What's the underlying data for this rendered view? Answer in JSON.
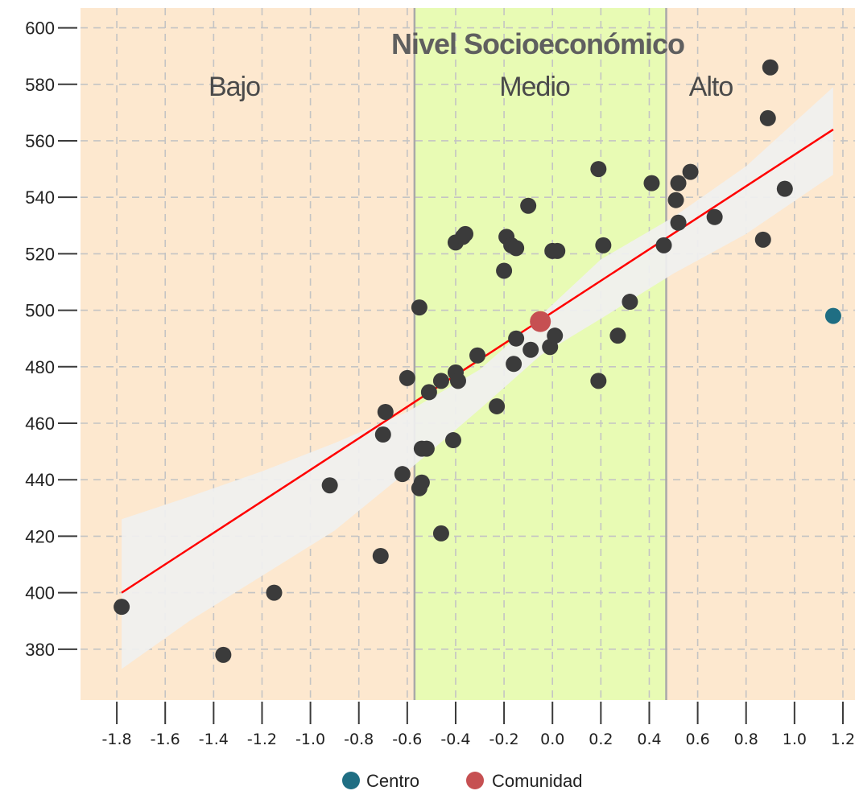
{
  "chart_data": {
    "type": "scatter",
    "title": "Nivel Socioeconómico",
    "xlim": [
      -1.95,
      1.25
    ],
    "ylim": [
      362,
      607
    ],
    "x_ticks": [
      "-1.8",
      "-1.6",
      "-1.4",
      "-1.2",
      "-1.0",
      "-0.8",
      "-0.6",
      "-0.4",
      "-0.2",
      "0.0",
      "0.2",
      "0.4",
      "0.6",
      "0.8",
      "1.0",
      "1.2"
    ],
    "y_ticks": [
      "380",
      "400",
      "420",
      "440",
      "460",
      "480",
      "500",
      "520",
      "540",
      "560",
      "580",
      "600"
    ],
    "grid": true,
    "regions": [
      {
        "label": "Bajo",
        "x_from": -1.95,
        "x_to": -0.57,
        "color": "#fde8cf"
      },
      {
        "label": "Medio",
        "x_from": -0.57,
        "x_to": 0.47,
        "color": "#e8fbb4"
      },
      {
        "label": "Alto",
        "x_from": 0.47,
        "x_to": 1.25,
        "color": "#fde8cf"
      }
    ],
    "legend": {
      "position": "bottom",
      "items": [
        {
          "label": "Centro",
          "color": "#1f6e83"
        },
        {
          "label": "Comunidad",
          "color": "#c65052"
        }
      ]
    },
    "points": [
      {
        "x": -1.78,
        "y": 395
      },
      {
        "x": -1.36,
        "y": 378
      },
      {
        "x": -1.15,
        "y": 400
      },
      {
        "x": -0.92,
        "y": 438
      },
      {
        "x": -0.71,
        "y": 413
      },
      {
        "x": -0.7,
        "y": 456
      },
      {
        "x": -0.69,
        "y": 464
      },
      {
        "x": -0.62,
        "y": 442
      },
      {
        "x": -0.6,
        "y": 476
      },
      {
        "x": -0.55,
        "y": 501
      },
      {
        "x": -0.55,
        "y": 437
      },
      {
        "x": -0.54,
        "y": 439
      },
      {
        "x": -0.54,
        "y": 451
      },
      {
        "x": -0.52,
        "y": 451
      },
      {
        "x": -0.51,
        "y": 471
      },
      {
        "x": -0.46,
        "y": 475
      },
      {
        "x": -0.46,
        "y": 421
      },
      {
        "x": -0.41,
        "y": 454
      },
      {
        "x": -0.4,
        "y": 478
      },
      {
        "x": -0.39,
        "y": 475
      },
      {
        "x": -0.4,
        "y": 524
      },
      {
        "x": -0.37,
        "y": 526
      },
      {
        "x": -0.36,
        "y": 527
      },
      {
        "x": -0.31,
        "y": 484
      },
      {
        "x": -0.23,
        "y": 466
      },
      {
        "x": -0.2,
        "y": 514
      },
      {
        "x": -0.19,
        "y": 526
      },
      {
        "x": -0.17,
        "y": 523
      },
      {
        "x": -0.16,
        "y": 481
      },
      {
        "x": -0.15,
        "y": 490
      },
      {
        "x": -0.15,
        "y": 522
      },
      {
        "x": -0.1,
        "y": 537
      },
      {
        "x": -0.09,
        "y": 486
      },
      {
        "x": -0.01,
        "y": 487
      },
      {
        "x": 0.0,
        "y": 521
      },
      {
        "x": 0.01,
        "y": 491
      },
      {
        "x": 0.02,
        "y": 521
      },
      {
        "x": 0.19,
        "y": 475
      },
      {
        "x": 0.19,
        "y": 550
      },
      {
        "x": 0.21,
        "y": 523
      },
      {
        "x": 0.27,
        "y": 491
      },
      {
        "x": 0.32,
        "y": 503
      },
      {
        "x": 0.41,
        "y": 545
      },
      {
        "x": 0.46,
        "y": 523
      },
      {
        "x": 0.51,
        "y": 539
      },
      {
        "x": 0.52,
        "y": 545
      },
      {
        "x": 0.52,
        "y": 531
      },
      {
        "x": 0.57,
        "y": 549
      },
      {
        "x": 0.67,
        "y": 533
      },
      {
        "x": 0.87,
        "y": 525
      },
      {
        "x": 0.89,
        "y": 568
      },
      {
        "x": 0.9,
        "y": 586
      },
      {
        "x": 0.96,
        "y": 543
      }
    ],
    "highlight_points": [
      {
        "series": "Comunidad",
        "x": -0.05,
        "y": 496,
        "color": "#c65052"
      },
      {
        "series": "Centro",
        "x": 1.16,
        "y": 498,
        "color": "#1f6e83"
      }
    ],
    "fit_line": {
      "color": "#ff0000",
      "x": [
        -1.78,
        1.16
      ],
      "y": [
        400,
        564
      ]
    },
    "confidence_band": {
      "color": "#f0f0f0",
      "x": [
        -1.78,
        -1.5,
        -1.2,
        -0.9,
        -0.6,
        -0.3,
        -0.05,
        0.2,
        0.5,
        0.8,
        1.16
      ],
      "upper": [
        426,
        434,
        443,
        453,
        464,
        479,
        498,
        518,
        533,
        551,
        579
      ],
      "lower": [
        373,
        390,
        406,
        422,
        443,
        465,
        484,
        497,
        513,
        527,
        548
      ]
    }
  }
}
